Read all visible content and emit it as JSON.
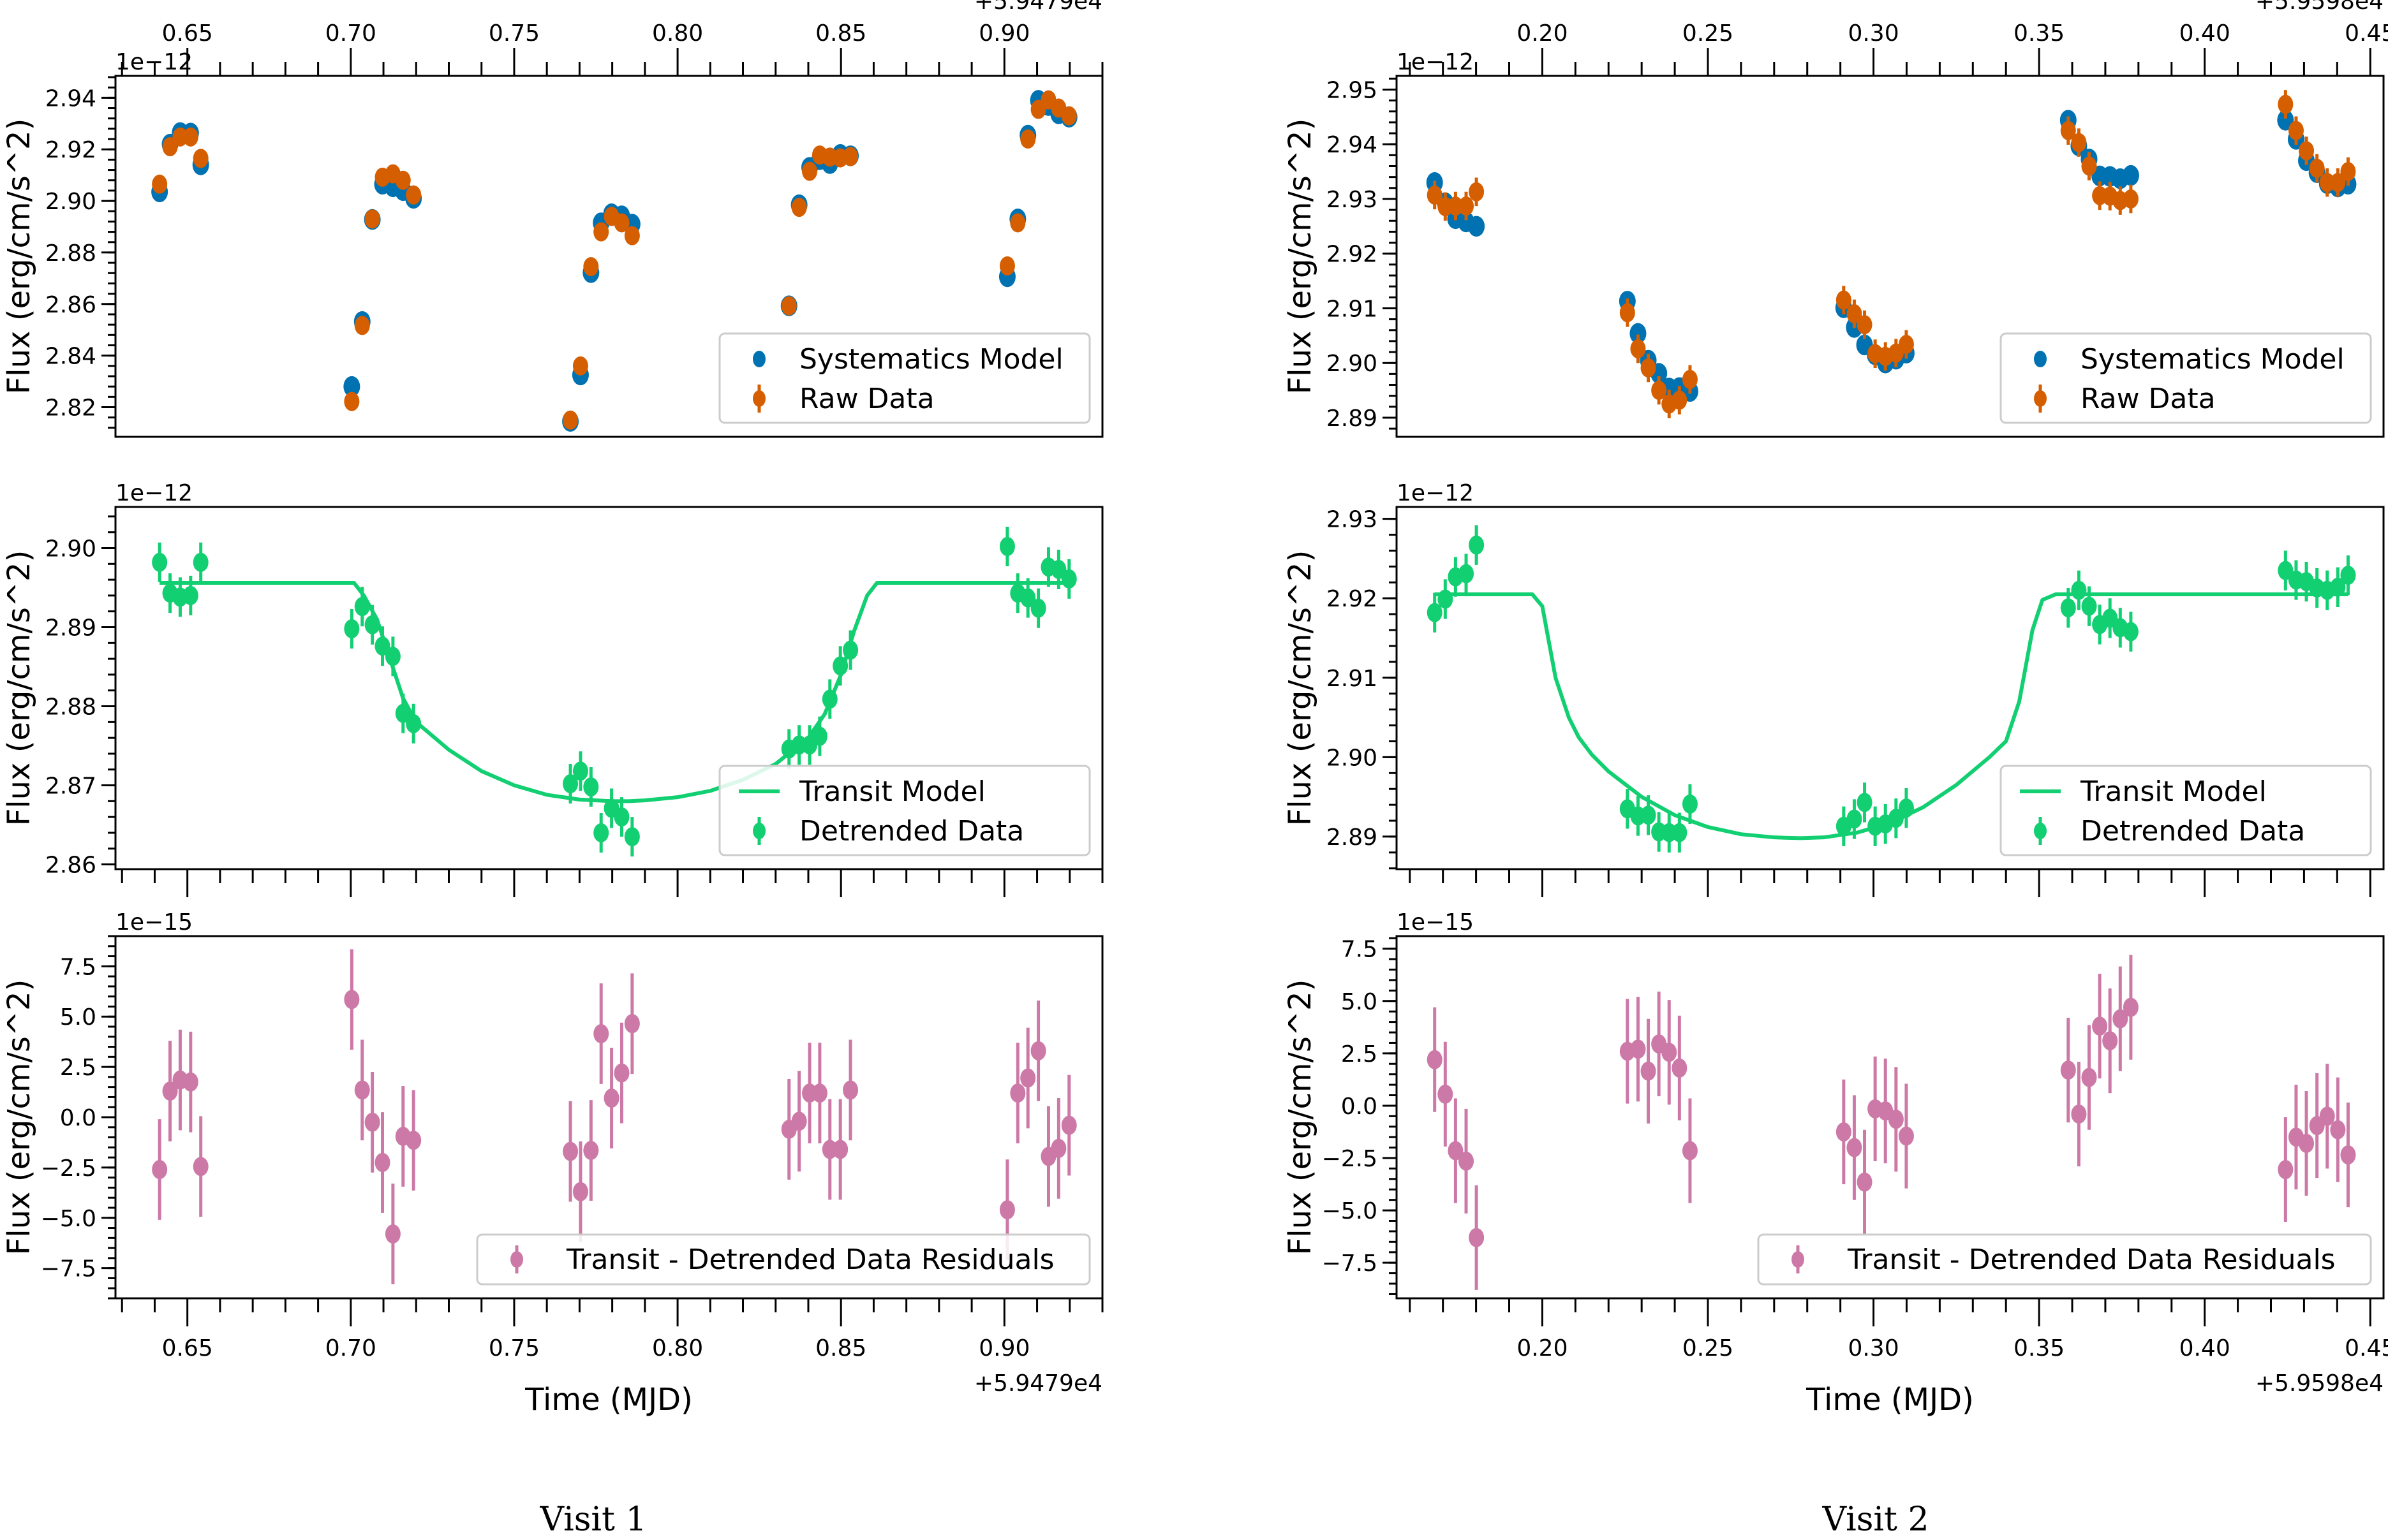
{
  "captions": [
    "Visit 1",
    "Visit 2"
  ],
  "colors": {
    "systematics": "#0072b2",
    "raw": "#d55e00",
    "transit": "#12cf72",
    "residuals": "#cc79a7",
    "legend_border": "#cccccc"
  },
  "chart_data": [
    {
      "type": "scatter",
      "id": "v1-top",
      "visit": "Visit 1",
      "ylabel": "Flux (erg/cm/s^2)",
      "xlabel": "",
      "x_offset_label": "+5.9479e4",
      "y_scale_label": "1e−12",
      "xlim": [
        0.628,
        0.93
      ],
      "ylim": [
        2.8085,
        2.9485
      ],
      "xticks": [
        0.65,
        0.7,
        0.75,
        0.8,
        0.85,
        0.9
      ],
      "xtick_labels": [
        "0.65",
        "0.70",
        "0.75",
        "0.80",
        "0.85",
        "0.90"
      ],
      "yticks": [
        2.82,
        2.84,
        2.86,
        2.88,
        2.9,
        2.92,
        2.94
      ],
      "ytick_labels": [
        "2.82",
        "2.84",
        "2.86",
        "2.88",
        "2.90",
        "2.92",
        "2.94"
      ],
      "top_ticks": true,
      "legend": [
        "Systematics Model",
        "Raw Data"
      ],
      "legend_position": "lower-right",
      "x": [
        0.6415,
        0.6447,
        0.6478,
        0.651,
        0.6541,
        0.7003,
        0.7035,
        0.7066,
        0.7097,
        0.7129,
        0.716,
        0.7192,
        0.7672,
        0.7703,
        0.7735,
        0.7766,
        0.7798,
        0.7829,
        0.7861,
        0.8341,
        0.8372,
        0.8404,
        0.8435,
        0.8466,
        0.8498,
        0.8529,
        0.9009,
        0.9041,
        0.9072,
        0.9104,
        0.9135,
        0.9166,
        0.9198
      ],
      "series": [
        {
          "name": "Systematics Model",
          "kind": "points",
          "values": [
            2.9035,
            2.922,
            2.9265,
            2.9263,
            2.914,
            2.828,
            2.8532,
            2.8928,
            2.9065,
            2.9055,
            2.904,
            2.901,
            2.8145,
            2.8325,
            2.8722,
            2.8915,
            2.895,
            2.8942,
            2.891,
            2.8593,
            2.8985,
            2.913,
            2.916,
            2.9145,
            2.918,
            2.9175,
            2.8706,
            2.893,
            2.9255,
            2.939,
            2.937,
            2.9338,
            2.9325
          ]
        },
        {
          "name": "Raw Data",
          "kind": "errorbar",
          "values": [
            2.9065,
            2.921,
            2.9248,
            2.9248,
            2.9165,
            2.8222,
            2.8517,
            2.893,
            2.9092,
            2.9105,
            2.908,
            2.9023,
            2.815,
            2.836,
            2.8745,
            2.888,
            2.894,
            2.8915,
            2.8865,
            2.8593,
            2.8975,
            2.9115,
            2.9178,
            2.917,
            2.9167,
            2.9172,
            2.8748,
            2.8915,
            2.924,
            2.9355,
            2.9392,
            2.936,
            2.933
          ],
          "error": 0.0006
        }
      ]
    },
    {
      "type": "scatter",
      "id": "v1-mid",
      "visit": "Visit 1",
      "ylabel": "Flux (erg/cm/s^2)",
      "xlabel": "",
      "y_scale_label": "1e−12",
      "xlim": [
        0.628,
        0.93
      ],
      "ylim": [
        2.8594,
        2.9052
      ],
      "xticks": [
        0.65,
        0.7,
        0.75,
        0.8,
        0.85,
        0.9
      ],
      "yticks": [
        2.86,
        2.87,
        2.88,
        2.89,
        2.9
      ],
      "ytick_labels": [
        "2.86",
        "2.87",
        "2.88",
        "2.89",
        "2.90"
      ],
      "legend": [
        "Transit Model",
        "Detrended Data"
      ],
      "legend_position": "lower-right",
      "x": [
        0.6415,
        0.6447,
        0.6478,
        0.651,
        0.6541,
        0.7003,
        0.7035,
        0.7066,
        0.7097,
        0.7129,
        0.716,
        0.7192,
        0.7672,
        0.7703,
        0.7735,
        0.7766,
        0.7798,
        0.7829,
        0.7861,
        0.8341,
        0.8372,
        0.8404,
        0.8435,
        0.8466,
        0.8498,
        0.8529,
        0.9009,
        0.9041,
        0.9072,
        0.9104,
        0.9135,
        0.9166,
        0.9198
      ],
      "series": [
        {
          "name": "Transit Model",
          "kind": "line",
          "x": [
            0.6415,
            0.701,
            0.704,
            0.708,
            0.712,
            0.716,
            0.72,
            0.73,
            0.74,
            0.75,
            0.76,
            0.77,
            0.78,
            0.785,
            0.79,
            0.8,
            0.81,
            0.82,
            0.83,
            0.84,
            0.845,
            0.85,
            0.854,
            0.858,
            0.861,
            0.9198
          ],
          "values": [
            2.8956,
            2.8956,
            2.894,
            2.891,
            2.886,
            2.881,
            2.878,
            2.8745,
            2.8718,
            2.87,
            2.8688,
            2.8682,
            2.868,
            2.868,
            2.8681,
            2.8685,
            2.8693,
            2.8707,
            2.8727,
            2.876,
            2.879,
            2.884,
            2.8895,
            2.894,
            2.8956,
            2.8956
          ]
        },
        {
          "name": "Detrended Data",
          "kind": "errorbar",
          "values": [
            2.8982,
            2.8943,
            2.8938,
            2.894,
            2.8982,
            2.8898,
            2.8926,
            2.8903,
            2.8876,
            2.8863,
            2.8791,
            2.8778,
            2.8702,
            2.8718,
            2.8698,
            2.864,
            2.8671,
            2.866,
            2.8635,
            2.8746,
            2.8751,
            2.8751,
            2.8762,
            2.8809,
            2.8851,
            2.8871,
            2.9002,
            2.8943,
            2.8937,
            2.8924,
            2.8976,
            2.8973,
            2.8961
          ],
          "error": 0.0025
        }
      ]
    },
    {
      "type": "scatter",
      "id": "v1-bot",
      "visit": "Visit 1",
      "ylabel": "Flux (erg/cm/s^2)",
      "xlabel": "Time (MJD)",
      "x_offset_label": "+5.9479e4",
      "y_scale_label": "1e−15",
      "xlim": [
        0.628,
        0.93
      ],
      "ylim": [
        -9.0,
        9.0
      ],
      "xticks": [
        0.65,
        0.7,
        0.75,
        0.8,
        0.85,
        0.9
      ],
      "xtick_labels": [
        "0.65",
        "0.70",
        "0.75",
        "0.80",
        "0.85",
        "0.90"
      ],
      "yticks": [
        -7.5,
        -5.0,
        -2.5,
        0.0,
        2.5,
        5.0,
        7.5
      ],
      "ytick_labels": [
        "−7.5",
        "−5.0",
        "−2.5",
        "0.0",
        "2.5",
        "5.0",
        "7.5"
      ],
      "legend": [
        "Transit - Detrended Data Residuals"
      ],
      "legend_position": "lower-right",
      "x": [
        0.6415,
        0.6447,
        0.6478,
        0.651,
        0.6541,
        0.7003,
        0.7035,
        0.7066,
        0.7097,
        0.7129,
        0.716,
        0.7192,
        0.7672,
        0.7703,
        0.7735,
        0.7766,
        0.7798,
        0.7829,
        0.7861,
        0.8341,
        0.8372,
        0.8404,
        0.8435,
        0.8466,
        0.8498,
        0.8529,
        0.9009,
        0.9041,
        0.9072,
        0.9104,
        0.9135,
        0.9166,
        0.9198
      ],
      "series": [
        {
          "name": "Transit - Detrended Data Residuals",
          "kind": "errorbar",
          "values": [
            -2.6,
            1.3,
            1.85,
            1.75,
            -2.45,
            5.85,
            1.35,
            -0.25,
            -2.25,
            -5.8,
            -0.95,
            -1.15,
            -1.7,
            -3.7,
            -1.65,
            4.15,
            0.95,
            2.2,
            4.65,
            -0.6,
            -0.2,
            1.2,
            1.2,
            -1.6,
            -1.6,
            1.35,
            -4.6,
            1.2,
            1.95,
            3.3,
            -1.95,
            -1.55,
            -0.4
          ],
          "error": 2.5
        }
      ]
    },
    {
      "type": "scatter",
      "id": "v2-top",
      "visit": "Visit 2",
      "ylabel": "Flux (erg/cm/s^2)",
      "xlabel": "",
      "x_offset_label": "+5.9598e4",
      "y_scale_label": "1e−12",
      "xlim": [
        0.156,
        0.454
      ],
      "ylim": [
        2.8865,
        2.9525
      ],
      "xticks": [
        0.2,
        0.25,
        0.3,
        0.35,
        0.4,
        0.45
      ],
      "xtick_labels": [
        "0.20",
        "0.25",
        "0.30",
        "0.35",
        "0.40",
        "0.45"
      ],
      "yticks": [
        2.89,
        2.9,
        2.91,
        2.92,
        2.93,
        2.94,
        2.95
      ],
      "ytick_labels": [
        "2.89",
        "2.90",
        "2.91",
        "2.92",
        "2.93",
        "2.94",
        "2.95"
      ],
      "top_ticks": true,
      "legend": [
        "Systematics Model",
        "Raw Data"
      ],
      "legend_position": "lower-right",
      "x": [
        0.1675,
        0.1707,
        0.1738,
        0.177,
        0.1801,
        0.2257,
        0.2289,
        0.232,
        0.2352,
        0.2383,
        0.2414,
        0.2446,
        0.291,
        0.2942,
        0.2973,
        0.3005,
        0.3036,
        0.3068,
        0.3099,
        0.3588,
        0.362,
        0.3651,
        0.3683,
        0.3714,
        0.3745,
        0.3777,
        0.4244,
        0.4276,
        0.4307,
        0.4339,
        0.437,
        0.4402,
        0.4433
      ],
      "series": [
        {
          "name": "Systematics Model",
          "kind": "points",
          "values": [
            2.933,
            2.9293,
            2.9264,
            2.9258,
            2.925,
            2.9113,
            2.9054,
            2.9005,
            2.8981,
            2.8954,
            2.8955,
            2.8948,
            2.9101,
            2.9065,
            2.9033,
            2.9015,
            2.9,
            2.9007,
            2.9018,
            2.9444,
            2.9397,
            2.9373,
            2.9342,
            2.9341,
            2.9337,
            2.9343,
            2.9444,
            2.9409,
            2.937,
            2.9348,
            2.9328,
            2.9322,
            2.9327
          ]
        },
        {
          "name": "Raw Data",
          "kind": "errorbar",
          "values": [
            2.9307,
            2.9286,
            2.9287,
            2.9287,
            2.9313,
            2.9092,
            2.9026,
            2.8991,
            2.895,
            2.8925,
            2.8932,
            2.897,
            2.9115,
            2.909,
            2.907,
            2.9017,
            2.9012,
            2.9018,
            2.9034,
            2.9425,
            2.9403,
            2.936,
            2.9306,
            2.9305,
            2.9297,
            2.93,
            2.9473,
            2.9425,
            2.9388,
            2.9356,
            2.933,
            2.933,
            2.935
          ],
          "error": 0.0026
        }
      ]
    },
    {
      "type": "scatter",
      "id": "v2-mid",
      "visit": "Visit 2",
      "ylabel": "Flux (erg/cm/s^2)",
      "xlabel": "",
      "y_scale_label": "1e−12",
      "xlim": [
        0.156,
        0.454
      ],
      "ylim": [
        2.8859,
        2.9315
      ],
      "xticks": [
        0.2,
        0.25,
        0.3,
        0.35,
        0.4,
        0.45
      ],
      "yticks": [
        2.89,
        2.9,
        2.91,
        2.92,
        2.93
      ],
      "ytick_labels": [
        "2.89",
        "2.90",
        "2.91",
        "2.92",
        "2.93"
      ],
      "legend": [
        "Transit Model",
        "Detrended Data"
      ],
      "legend_position": "lower-right",
      "x": [
        0.1675,
        0.1707,
        0.1738,
        0.177,
        0.1801,
        0.2257,
        0.2289,
        0.232,
        0.2352,
        0.2383,
        0.2414,
        0.2446,
        0.291,
        0.2942,
        0.2973,
        0.3005,
        0.3036,
        0.3068,
        0.3099,
        0.3588,
        0.362,
        0.3651,
        0.3683,
        0.3714,
        0.3745,
        0.3777,
        0.4244,
        0.4276,
        0.4307,
        0.4339,
        0.437,
        0.4402,
        0.4433
      ],
      "series": [
        {
          "name": "Transit Model",
          "kind": "line",
          "x": [
            0.1675,
            0.197,
            0.2,
            0.204,
            0.208,
            0.211,
            0.215,
            0.22,
            0.23,
            0.24,
            0.25,
            0.26,
            0.27,
            0.278,
            0.285,
            0.295,
            0.305,
            0.315,
            0.325,
            0.335,
            0.34,
            0.344,
            0.348,
            0.351,
            0.355,
            0.4433
          ],
          "values": [
            2.9205,
            2.9205,
            2.919,
            2.91,
            2.905,
            2.9025,
            2.9003,
            2.8982,
            2.895,
            2.8927,
            2.8912,
            2.8903,
            2.8899,
            2.8898,
            2.8899,
            2.8905,
            2.8917,
            2.8937,
            2.8965,
            2.9,
            2.902,
            2.907,
            2.916,
            2.9198,
            2.9205,
            2.9205
          ]
        },
        {
          "name": "Detrended Data",
          "kind": "errorbar",
          "values": [
            2.9182,
            2.9199,
            2.9227,
            2.9231,
            2.9267,
            2.8935,
            2.8926,
            2.8927,
            2.8906,
            2.8905,
            2.8905,
            2.8941,
            2.8913,
            2.8922,
            2.8943,
            2.8913,
            2.8916,
            2.8923,
            2.8936,
            2.9188,
            2.921,
            2.919,
            2.9167,
            2.9175,
            2.9163,
            2.9158,
            2.9235,
            2.9223,
            2.9221,
            2.9213,
            2.921,
            2.9214,
            2.9229
          ],
          "error": 0.0025
        }
      ]
    },
    {
      "type": "scatter",
      "id": "v2-bot",
      "visit": "Visit 2",
      "ylabel": "Flux (erg/cm/s^2)",
      "xlabel": "Time (MJD)",
      "x_offset_label": "+5.9598e4",
      "y_scale_label": "1e−15",
      "xlim": [
        0.156,
        0.454
      ],
      "ylim": [
        -9.2,
        8.1
      ],
      "xticks": [
        0.2,
        0.25,
        0.3,
        0.35,
        0.4,
        0.45
      ],
      "xtick_labels": [
        "0.20",
        "0.25",
        "0.30",
        "0.35",
        "0.40",
        "0.45"
      ],
      "yticks": [
        -7.5,
        -5.0,
        -2.5,
        0.0,
        2.5,
        5.0,
        7.5
      ],
      "ytick_labels": [
        "−7.5",
        "−5.0",
        "−2.5",
        "0.0",
        "2.5",
        "5.0",
        "7.5"
      ],
      "legend": [
        "Transit - Detrended Data Residuals"
      ],
      "legend_position": "lower-right",
      "x": [
        0.1675,
        0.1707,
        0.1738,
        0.177,
        0.1801,
        0.2257,
        0.2289,
        0.232,
        0.2352,
        0.2383,
        0.2414,
        0.2446,
        0.291,
        0.2942,
        0.2973,
        0.3005,
        0.3036,
        0.3068,
        0.3099,
        0.3588,
        0.362,
        0.3651,
        0.3683,
        0.3714,
        0.3745,
        0.3777,
        0.4244,
        0.4276,
        0.4307,
        0.4339,
        0.437,
        0.4402,
        0.4433
      ],
      "series": [
        {
          "name": "Transit - Detrended Data Residuals",
          "kind": "errorbar",
          "values": [
            2.2,
            0.55,
            -2.15,
            -2.65,
            -6.3,
            2.6,
            2.7,
            1.65,
            2.95,
            2.55,
            1.8,
            -2.15,
            -1.25,
            -2.0,
            -3.65,
            -0.15,
            -0.25,
            -0.65,
            -1.45,
            1.7,
            -0.4,
            1.35,
            3.8,
            3.1,
            4.15,
            4.7,
            -3.05,
            -1.5,
            -1.8,
            -0.95,
            -0.5,
            -1.15,
            -2.35
          ],
          "error": 2.5
        }
      ]
    }
  ]
}
